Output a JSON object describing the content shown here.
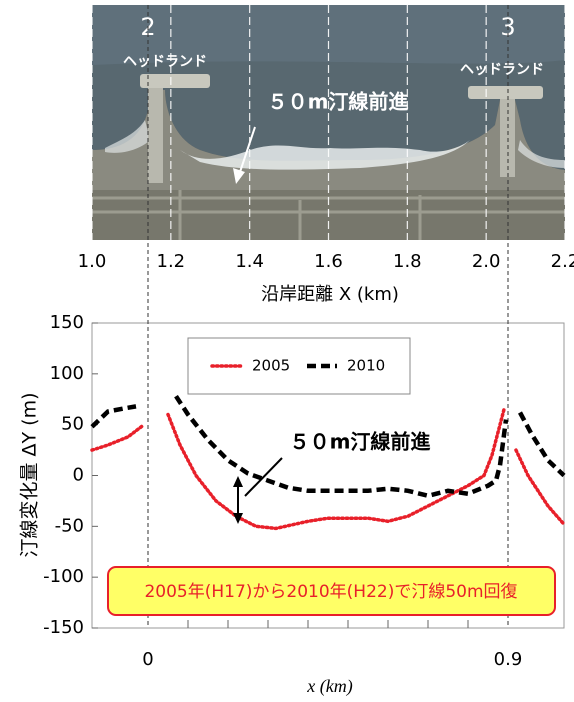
{
  "chart_data": [
    {
      "type": "photo",
      "headland_numbers": [
        "2",
        "3"
      ],
      "headland_labels": [
        "ヘッドランド",
        "ヘッドランド"
      ],
      "annotation": "５０m汀線前進",
      "x_label": "沿岸距離 X (km)",
      "xlim": [
        1.0,
        2.2
      ],
      "xticks": [
        {
          "value": 1,
          "label": "1.0"
        },
        1.2,
        1.4,
        1.6,
        1.8,
        {
          "value": 2,
          "label": "2.0"
        },
        2.2
      ],
      "grid": true
    },
    {
      "type": "line",
      "y_label": "汀線変化量 ΔY (m)",
      "x_label": "x (km)",
      "xlim": [
        -0.14,
        1.04
      ],
      "ylim": [
        -150,
        150
      ],
      "yticks": [
        150,
        100,
        50,
        0,
        -50,
        -100,
        -150
      ],
      "xticks": [
        0,
        0.9
      ],
      "xminorticks": [
        0.1,
        0.2,
        0.3,
        0.4,
        0.5,
        0.6,
        0.7,
        0.8
      ],
      "annotation": "５０m汀線前進",
      "note": "2005年(H17)から2010年(H22)で汀線50m回復",
      "legend": "top",
      "series": [
        {
          "name": "2005",
          "color": "#e8202a",
          "style": "dotted",
          "x": [
            -0.14,
            -0.1,
            -0.05,
            -0.01,
            0.02,
            0.05,
            0.08,
            0.12,
            0.17,
            0.22,
            0.27,
            0.32,
            0.4,
            0.45,
            0.5,
            0.55,
            0.6,
            0.65,
            0.7,
            0.75,
            0.8,
            0.84,
            0.86,
            0.88,
            0.89,
            0.905,
            0.92,
            0.95,
            1.0,
            1.04
          ],
          "values": [
            25,
            30,
            38,
            50,
            null,
            60,
            30,
            0,
            -25,
            -40,
            -50,
            -52,
            -45,
            -42,
            -42,
            -42,
            -45,
            -40,
            -30,
            -20,
            -10,
            0,
            20,
            50,
            65,
            null,
            25,
            0,
            -30,
            -48
          ]
        },
        {
          "name": "2010",
          "color": "#000000",
          "style": "dashed",
          "x": [
            -0.14,
            -0.1,
            -0.06,
            -0.03,
            0.02,
            0.07,
            0.1,
            0.15,
            0.2,
            0.25,
            0.3,
            0.35,
            0.4,
            0.5,
            0.55,
            0.6,
            0.65,
            0.7,
            0.75,
            0.8,
            0.85,
            0.87,
            0.88,
            0.895,
            0.91,
            0.93,
            0.96,
            1.0,
            1.04
          ],
          "values": [
            48,
            63,
            66,
            68,
            null,
            78,
            60,
            35,
            15,
            2,
            -5,
            -12,
            -15,
            -15,
            -15,
            -13,
            -15,
            -20,
            -15,
            -18,
            -10,
            -5,
            10,
            55,
            null,
            62,
            40,
            15,
            0
          ]
        }
      ]
    }
  ]
}
